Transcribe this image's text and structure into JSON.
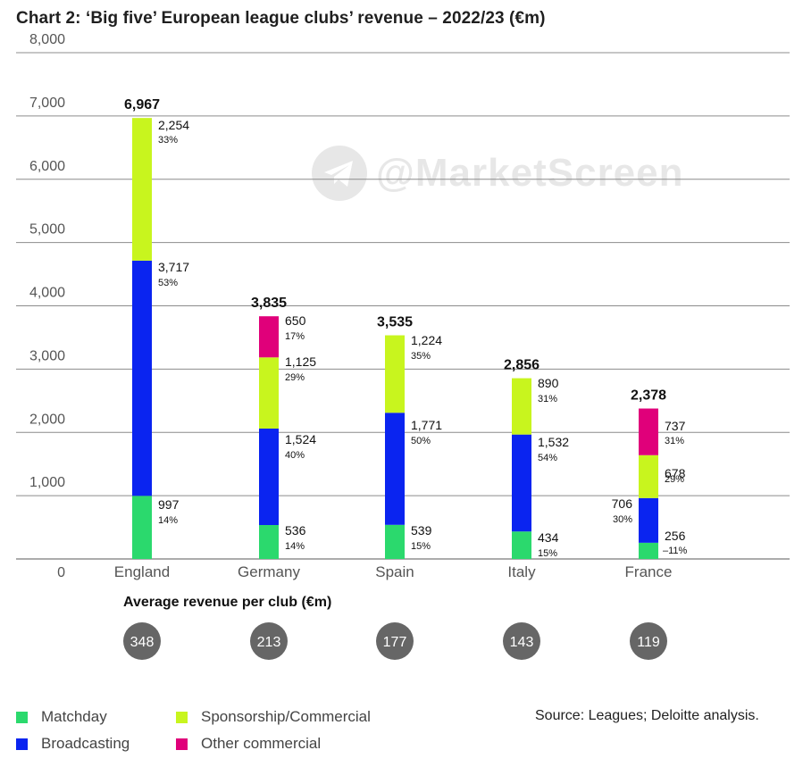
{
  "title": "Chart 2: ‘Big five’ European league clubs’ revenue – 2022/23 (€m)",
  "watermark": "@MarketScreen",
  "colors": {
    "matchday": "#2bd96d",
    "broadcasting": "#0a24f0",
    "sponsorship": "#c8f51e",
    "other": "#e0007a",
    "gridline": "#8c8c8c",
    "badge": "#666666"
  },
  "chart_data": {
    "type": "bar",
    "stacked": true,
    "title": "Chart 2: ‘Big five’ European league clubs’ revenue – 2022/23 (€m)",
    "ylim": [
      0,
      8000
    ],
    "yticks": [
      "0",
      "1,000",
      "2,000",
      "3,000",
      "4,000",
      "5,000",
      "6,000",
      "7,000",
      "8,000"
    ],
    "ytick_values": [
      0,
      1000,
      2000,
      3000,
      4000,
      5000,
      6000,
      7000,
      8000
    ],
    "categories": [
      "England",
      "Germany",
      "Spain",
      "Italy",
      "France"
    ],
    "totals": [
      "6,967",
      "3,835",
      "3,535",
      "2,856",
      "2,378"
    ],
    "series": [
      {
        "key": "matchday",
        "name": "Matchday",
        "values": [
          997,
          536,
          539,
          434,
          256
        ],
        "labels": [
          "997",
          "536",
          "539",
          "434",
          "256"
        ],
        "pcts": [
          "14%",
          "14%",
          "15%",
          "15%",
          "11%"
        ]
      },
      {
        "key": "broadcasting",
        "name": "Broadcasting",
        "values": [
          3717,
          1524,
          1771,
          1532,
          706
        ],
        "labels": [
          "3,717",
          "1,524",
          "1,771",
          "1,532",
          "706"
        ],
        "pcts": [
          "53%",
          "40%",
          "50%",
          "54%",
          "30%"
        ]
      },
      {
        "key": "sponsorship",
        "name": "Sponsorship/Commercial",
        "values": [
          2254,
          1125,
          1224,
          890,
          678
        ],
        "labels": [
          "2,254",
          "1,125",
          "1,224",
          "890",
          "678"
        ],
        "pcts": [
          "33%",
          "29%",
          "35%",
          "31%",
          "29%"
        ]
      },
      {
        "key": "other",
        "name": "Other commercial",
        "values": [
          0,
          650,
          0,
          0,
          737
        ],
        "labels": [
          "",
          "650",
          "",
          "",
          "737"
        ],
        "pcts": [
          "",
          "17%",
          "",
          "",
          "31%"
        ]
      }
    ]
  },
  "average": {
    "title": "Average revenue per club (€m)",
    "values": [
      "348",
      "213",
      "177",
      "143",
      "119"
    ]
  },
  "legend": {
    "matchday": "Matchday",
    "broadcasting": "Broadcasting",
    "sponsorship": "Sponsorship/Commercial",
    "other": "Other commercial"
  },
  "source": "Source: Leagues; Deloitte analysis."
}
